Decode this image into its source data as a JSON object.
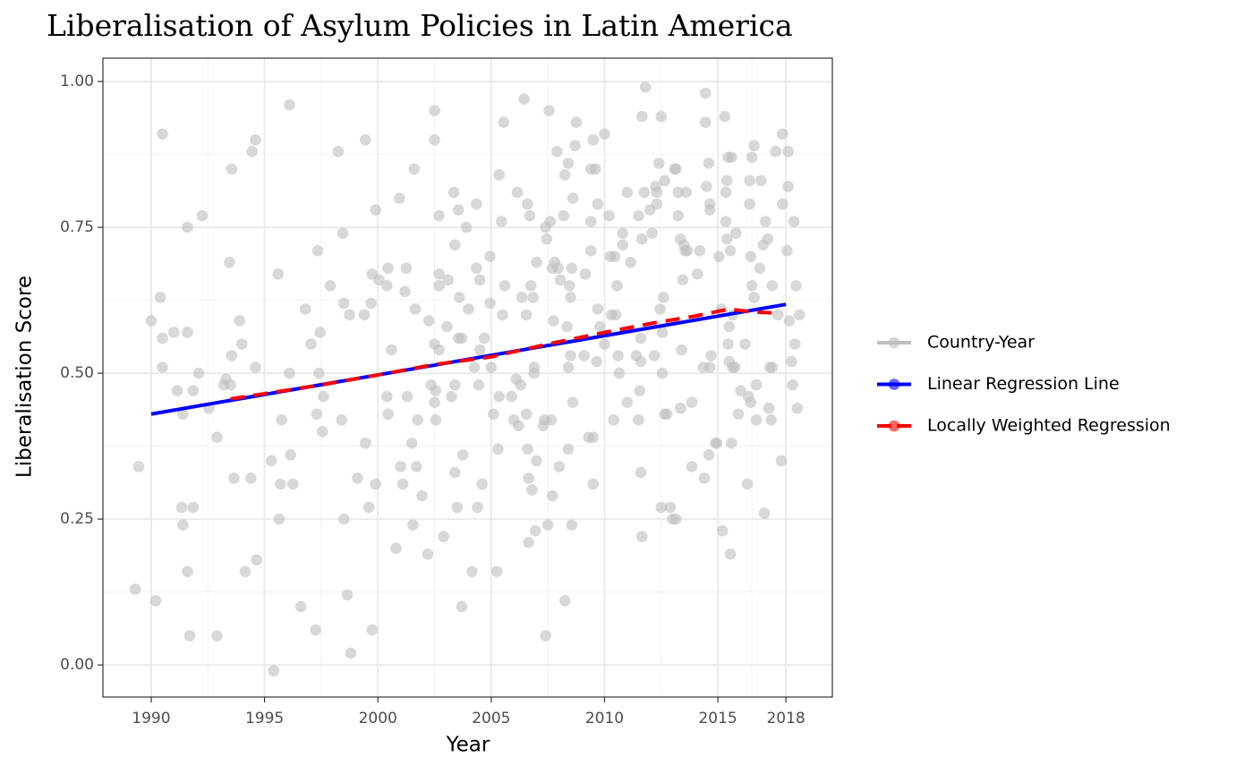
{
  "chart_data": {
    "type": "scatter",
    "title": "Liberalisation of Asylum Policies in Latin America",
    "xlabel": "Year",
    "ylabel": "Liberalisation Score",
    "xlim": [
      1987.87,
      2020.05
    ],
    "ylim": [
      -0.055,
      1.04
    ],
    "xticks": [
      1990,
      1995,
      2000,
      2005,
      2010,
      2015,
      2018
    ],
    "yticks": [
      {
        "value": 0,
        "label": "0.00"
      },
      {
        "value": 0.25,
        "label": "0.25"
      },
      {
        "value": 0.5,
        "label": "0.50"
      },
      {
        "value": 0.75,
        "label": "0.75"
      },
      {
        "value": 1,
        "label": "1.00"
      }
    ],
    "grid": true,
    "legend": "right",
    "series": [
      {
        "name": "Country-Year",
        "color": "#bebebe",
        "type": "scatter",
        "x": [
          1989.3,
          1989.45,
          1990,
          1990.2,
          1990.4,
          1990.5,
          1990.5,
          1990.5,
          1991,
          1991.15,
          1991.35,
          1991.4,
          1991.4,
          1991.6,
          1991.6,
          1991.6,
          1991.7,
          1991.85,
          1991.85,
          1992.1,
          1992.25,
          1992.55,
          1992.9,
          1992.9,
          1993.2,
          1993.3,
          1993.45,
          1993.5,
          1993.55,
          1993.55,
          1993.65,
          1993.9,
          1994,
          1994.15,
          1994.4,
          1994.45,
          1994.6,
          1994.6,
          1994.65,
          1995.3,
          1995.4,
          1995.6,
          1995.65,
          1995.7,
          1995.75,
          1996.1,
          1996.1,
          1996.15,
          1996.25,
          1996.6,
          1996.8,
          1997.05,
          1997.25,
          1997.3,
          1997.35,
          1997.4,
          1997.45,
          1997.55,
          1997.6,
          1997.9,
          1998.25,
          1998.4,
          1998.45,
          1998.5,
          1998.5,
          1998.65,
          1998.75,
          1998.8,
          1999.1,
          1999.4,
          1999.45,
          1999.45,
          1999.6,
          1999.7,
          1999.75,
          1999.75,
          1999.9,
          1999.9,
          2000.05,
          2000.4,
          2000.4,
          2000.45,
          2000.45,
          2000.6,
          2000.8,
          2000.95,
          2001,
          2001.1,
          2001.2,
          2001.25,
          2001.3,
          2001.5,
          2001.55,
          2001.6,
          2001.65,
          2001.7,
          2001.75,
          2001.95,
          2002.2,
          2002.25,
          2002.35,
          2002.5,
          2002.5,
          2002.5,
          2002.5,
          2002.55,
          2002.55,
          2002.7,
          2002.7,
          2002.7,
          2002.7,
          2002.9,
          2003.05,
          2003.1,
          2003.25,
          2003.35,
          2003.4,
          2003.4,
          2003.4,
          2003.5,
          2003.55,
          2003.55,
          2003.6,
          2003.7,
          2003.7,
          2003.75,
          2003.9,
          2004.0,
          2004.15,
          2004.25,
          2004.35,
          2004.35,
          2004.4,
          2004.45,
          2004.5,
          2004.5,
          2004.6,
          2004.7,
          2004.95,
          2004.95,
          2005,
          2005.1,
          2005.25,
          2005.3,
          2005.35,
          2005.35,
          2005.45,
          2005.5,
          2005.55,
          2005.6,
          2005.9,
          2006.0,
          2006.1,
          2006.15,
          2006.2,
          2006.3,
          2006.35,
          2006.45,
          2006.55,
          2006.55,
          2006.6,
          2006.6,
          2006.65,
          2006.65,
          2006.7,
          2006.75,
          2006.8,
          2006.85,
          2006.9,
          2006.9,
          2006.95,
          2007.0,
          2007.0,
          2007.3,
          2007.35,
          2007.4,
          2007.4,
          2007.45,
          2007.5,
          2007.55,
          2007.6,
          2007.65,
          2007.7,
          2007.7,
          2007.75,
          2007.8,
          2007.9,
          2007.95,
          2008,
          2008.05,
          2008.2,
          2008.25,
          2008.25,
          2008.35,
          2008.4,
          2008.4,
          2008.4,
          2008.45,
          2008.5,
          2008.5,
          2008.55,
          2008.55,
          2008.6,
          2008.6,
          2008.7,
          2008.75,
          2009.1,
          2009.15,
          2009.3,
          2009.4,
          2009.4,
          2009.4,
          2009.5,
          2009.5,
          2009.5,
          2009.6,
          2009.65,
          2009.7,
          2009.7,
          2009.8,
          2010.0,
          2010.0,
          2010.2,
          2010.25,
          2010.3,
          2010.4,
          2010.45,
          2010.5,
          2010.55,
          2010.6,
          2010.65,
          2010.8,
          2010.8,
          2011.0,
          2011.0,
          2011.15,
          2011.4,
          2011.5,
          2011.5,
          2011.55,
          2011.6,
          2011.6,
          2011.6,
          2011.65,
          2011.65,
          2011.65,
          2011.75,
          2011.8,
          2012.0,
          2012.1,
          2012.2,
          2012.25,
          2012.3,
          2012.3,
          2012.4,
          2012.45,
          2012.5,
          2012.5,
          2012.55,
          2012.55,
          2012.6,
          2012.65,
          2012.65,
          2012.75,
          2012.9,
          2013.0,
          2013.1,
          2013.15,
          2013.15,
          2013.25,
          2013.25,
          2013.35,
          2013.35,
          2013.4,
          2013.45,
          2013.5,
          2013.55,
          2013.6,
          2013.65,
          2013.85,
          2013.85,
          2014.1,
          2014.2,
          2014.35,
          2014.4,
          2014.45,
          2014.45,
          2014.5,
          2014.6,
          2014.6,
          2014.65,
          2014.65,
          2014.65,
          2014.7,
          2014.9,
          2014.95,
          2015.05,
          2015.15,
          2015.2,
          2015.3,
          2015.35,
          2015.35,
          2015.4,
          2015.4,
          2015.45,
          2015.45,
          2015.5,
          2015.5,
          2015.55,
          2015.55,
          2015.6,
          2015.6,
          2015.65,
          2015.65,
          2015.75,
          2015.8,
          2015.9,
          2016.0,
          2016.2,
          2016.3,
          2016.35,
          2016.4,
          2016.4,
          2016.45,
          2016.45,
          2016.5,
          2016.5,
          2016.6,
          2016.6,
          2016.7,
          2016.7,
          2016.85,
          2016.9,
          2017.0,
          2017.05,
          2017.1,
          2017.2,
          2017.25,
          2017.3,
          2017.35,
          2017.4,
          2017.4,
          2017.55,
          2017.65,
          2017.8,
          2017.85,
          2017.85,
          2018.05,
          2018.1,
          2018.1,
          2018.15,
          2018.25,
          2018.3,
          2018.35,
          2018.4,
          2018.45,
          2018.5,
          2018.6
        ],
        "values": [
          0.13,
          0.34,
          0.59,
          0.11,
          0.63,
          0.91,
          0.56,
          0.51,
          0.57,
          0.47,
          0.27,
          0.24,
          0.43,
          0.57,
          0.75,
          0.16,
          0.05,
          0.27,
          0.47,
          0.5,
          0.77,
          0.44,
          0.05,
          0.39,
          0.48,
          0.49,
          0.69,
          0.48,
          0.85,
          0.53,
          0.32,
          0.59,
          0.55,
          0.16,
          0.32,
          0.88,
          0.9,
          0.51,
          0.18,
          0.35,
          -0.01,
          0.67,
          0.25,
          0.31,
          0.42,
          0.96,
          0.5,
          0.36,
          0.31,
          0.1,
          0.61,
          0.55,
          0.06,
          0.43,
          0.71,
          0.5,
          0.57,
          0.4,
          0.46,
          0.65,
          0.88,
          0.42,
          0.74,
          0.25,
          0.62,
          0.12,
          0.6,
          0.02,
          0.32,
          0.6,
          0.38,
          0.9,
          0.27,
          0.62,
          0.67,
          0.06,
          0.78,
          0.31,
          0.66,
          0.65,
          0.46,
          0.68,
          0.43,
          0.54,
          0.2,
          0.8,
          0.34,
          0.31,
          0.64,
          0.68,
          0.46,
          0.38,
          0.24,
          0.85,
          0.61,
          0.34,
          0.42,
          0.29,
          0.19,
          0.59,
          0.48,
          0.9,
          0.95,
          0.55,
          0.45,
          0.42,
          0.47,
          0.77,
          0.65,
          0.67,
          0.54,
          0.22,
          0.58,
          0.66,
          0.46,
          0.81,
          0.72,
          0.33,
          0.48,
          0.27,
          0.56,
          0.78,
          0.63,
          0.1,
          0.56,
          0.36,
          0.75,
          0.61,
          0.16,
          0.51,
          0.79,
          0.68,
          0.27,
          0.48,
          0.66,
          0.54,
          0.31,
          0.56,
          0.7,
          0.62,
          0.51,
          0.43,
          0.16,
          0.37,
          0.84,
          0.46,
          0.76,
          0.6,
          0.93,
          0.65,
          0.46,
          0.42,
          0.49,
          0.81,
          0.41,
          0.48,
          0.63,
          0.97,
          0.6,
          0.43,
          0.79,
          0.37,
          0.32,
          0.21,
          0.77,
          0.65,
          0.3,
          0.63,
          0.51,
          0.5,
          0.23,
          0.69,
          0.35,
          0.41,
          0.42,
          0.75,
          0.05,
          0.73,
          0.24,
          0.95,
          0.76,
          0.42,
          0.29,
          0.68,
          0.59,
          0.69,
          0.88,
          0.68,
          0.34,
          0.66,
          0.77,
          0.84,
          0.11,
          0.58,
          0.86,
          0.51,
          0.37,
          0.65,
          0.53,
          0.63,
          0.68,
          0.24,
          0.8,
          0.45,
          0.89,
          0.93,
          0.53,
          0.67,
          0.39,
          0.85,
          0.71,
          0.76,
          0.31,
          0.9,
          0.39,
          0.85,
          0.52,
          0.61,
          0.79,
          0.58,
          0.91,
          0.55,
          0.77,
          0.7,
          0.6,
          0.42,
          0.7,
          0.6,
          0.65,
          0.53,
          0.5,
          0.74,
          0.72,
          0.81,
          0.45,
          0.69,
          0.53,
          0.77,
          0.42,
          0.47,
          0.33,
          0.52,
          0.56,
          0.94,
          0.73,
          0.22,
          0.81,
          0.99,
          0.78,
          0.74,
          0.53,
          0.82,
          0.81,
          0.79,
          0.86,
          0.61,
          0.94,
          0.27,
          0.5,
          0.57,
          0.63,
          0.83,
          0.43,
          0.43,
          0.27,
          0.25,
          0.85,
          0.25,
          0.85,
          0.77,
          0.81,
          0.73,
          0.44,
          0.54,
          0.66,
          0.72,
          0.71,
          0.81,
          0.71,
          0.34,
          0.45,
          0.67,
          0.71,
          0.51,
          0.32,
          0.98,
          0.93,
          0.82,
          0.36,
          0.86,
          0.79,
          0.78,
          0.51,
          0.53,
          0.38,
          0.38,
          0.7,
          0.61,
          0.23,
          0.94,
          0.76,
          0.81,
          0.83,
          0.73,
          0.87,
          0.55,
          0.52,
          0.58,
          0.19,
          0.71,
          0.38,
          0.87,
          0.6,
          0.51,
          0.51,
          0.74,
          0.43,
          0.47,
          0.55,
          0.31,
          0.46,
          0.79,
          0.83,
          0.45,
          0.7,
          0.87,
          0.65,
          0.89,
          0.63,
          0.42,
          0.48,
          0.68,
          0.83,
          0.72,
          0.26,
          0.76,
          0.73,
          0.44,
          0.51,
          0.42,
          0.51,
          0.65,
          0.88,
          0.6,
          0.35,
          0.91,
          0.79,
          0.71,
          0.88,
          0.82,
          0.59,
          0.52,
          0.48,
          0.76,
          0.55,
          0.65,
          0.44,
          0.6
        ]
      },
      {
        "name": "Linear Regression Line",
        "color": "#0000ff",
        "type": "line",
        "x": [
          1990,
          2018
        ],
        "values": [
          0.43,
          0.618
        ]
      },
      {
        "name": "Locally Weighted Regression",
        "color": "#ff0000",
        "type": "line",
        "linestyle": "dashed",
        "x": [
          1993.5,
          1995,
          1997.5,
          2000,
          2002.5,
          2005,
          2007.5,
          2010,
          2012,
          2014,
          2015.5,
          2016.5,
          2017.6
        ],
        "values": [
          0.456,
          0.465,
          0.48,
          0.497,
          0.515,
          0.528,
          0.55,
          0.57,
          0.585,
          0.598,
          0.61,
          0.605,
          0.603
        ]
      }
    ]
  }
}
